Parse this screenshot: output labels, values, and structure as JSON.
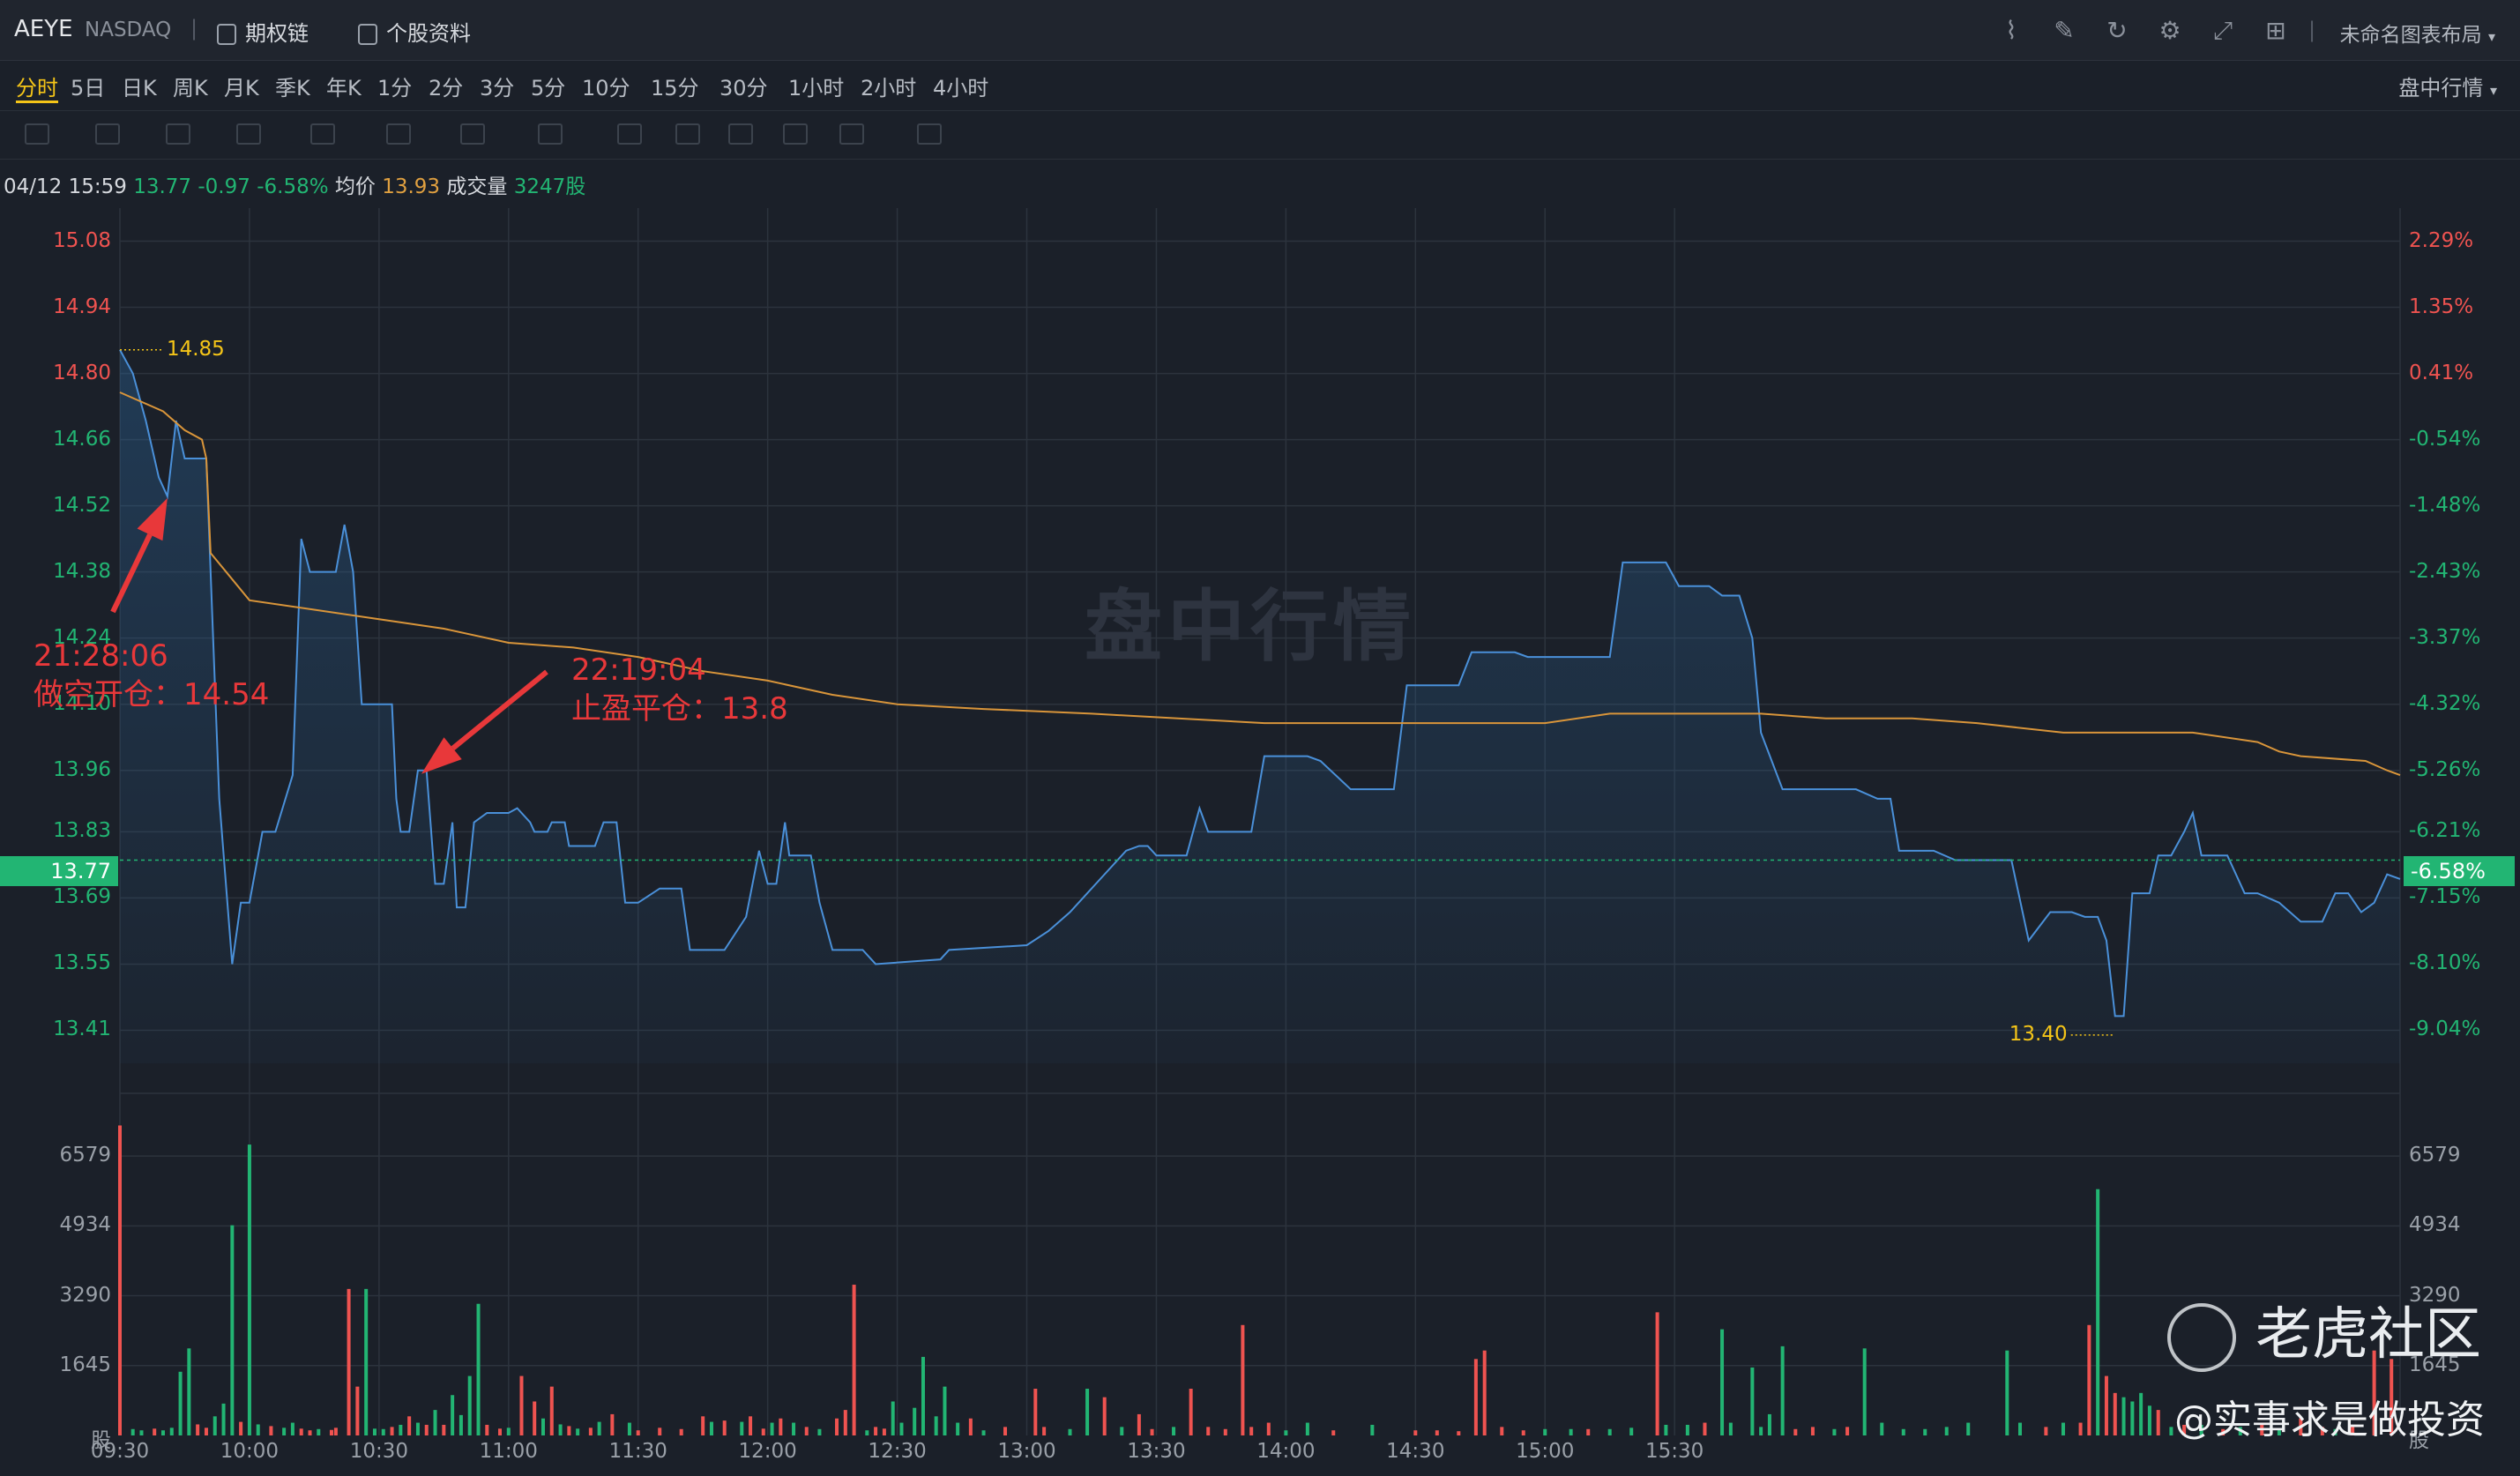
{
  "header": {
    "symbol": "AEYE",
    "exchange": "NASDAQ",
    "options_chain": "期权链",
    "profile": "个股资料",
    "layout_name": "未命名图表布局"
  },
  "timeframes": [
    "分时",
    "5日",
    "日K",
    "周K",
    "月K",
    "季K",
    "年K",
    "1分",
    "2分",
    "3分",
    "5分",
    "10分",
    "15分",
    "30分",
    "1小时",
    "2小时",
    "4小时"
  ],
  "session_mode": "盘中行情",
  "info_line": {
    "datetime": "04/12 15:59",
    "price": "13.77",
    "change": "-0.97",
    "change_pct": "-6.58%",
    "avg_label": "均价",
    "avg": "13.93",
    "volume_label": "成交量",
    "volume": "3247股"
  },
  "watermark": "盘中行情",
  "price_axis": {
    "labels": [
      "15.08",
      "14.94",
      "14.80",
      "14.66",
      "14.52",
      "14.38",
      "14.24",
      "14.10",
      "13.96",
      "13.83",
      "13.69",
      "13.55",
      "13.41"
    ],
    "pct_labels": [
      "2.29%",
      "1.35%",
      "0.41%",
      "-0.54%",
      "-1.48%",
      "-2.43%",
      "-3.37%",
      "-4.32%",
      "-5.26%",
      "-6.21%",
      "-7.15%",
      "-8.10%",
      "-9.04%"
    ],
    "current_price": "13.77",
    "current_pct": "-6.58%"
  },
  "volume_axis": {
    "labels": [
      "6579",
      "4934",
      "3290",
      "1645",
      "股"
    ]
  },
  "time_axis": [
    "09:30",
    "10:00",
    "10:30",
    "11:00",
    "11:30",
    "12:00",
    "12:30",
    "13:00",
    "13:30",
    "14:00",
    "14:30",
    "15:00",
    "15:30"
  ],
  "markers": {
    "high": "14.85",
    "low": "13.40"
  },
  "annotations": {
    "short_time": "21:28:06",
    "short_text": "做空开仓：14.54",
    "close_time": "22:19:04",
    "close_text": "止盈平仓：13.8"
  },
  "branding": {
    "logo": "老虎社区",
    "handle": "@实事求是做投资"
  },
  "colors": {
    "up": "#ef5350",
    "down": "#22b573",
    "line": "#4a90d9",
    "avg": "#d9953a",
    "accent": "#f5c518"
  },
  "chart_data": {
    "type": "line",
    "x_range": [
      "09:30",
      "16:00"
    ],
    "ylim": [
      13.34,
      15.15
    ],
    "price": [
      [
        0,
        14.85
      ],
      [
        3,
        14.8
      ],
      [
        6,
        14.7
      ],
      [
        9,
        14.58
      ],
      [
        11,
        14.54
      ],
      [
        13,
        14.7
      ],
      [
        15,
        14.62
      ],
      [
        20,
        14.62
      ],
      [
        23,
        13.9
      ],
      [
        26,
        13.55
      ],
      [
        28,
        13.68
      ],
      [
        30,
        13.68
      ],
      [
        33,
        13.83
      ],
      [
        36,
        13.83
      ],
      [
        40,
        13.95
      ],
      [
        42,
        14.45
      ],
      [
        44,
        14.38
      ],
      [
        50,
        14.38
      ],
      [
        52,
        14.48
      ],
      [
        54,
        14.38
      ],
      [
        56,
        14.1
      ],
      [
        63,
        14.1
      ],
      [
        64,
        13.9
      ],
      [
        65,
        13.83
      ],
      [
        67,
        13.83
      ],
      [
        69,
        13.96
      ],
      [
        71,
        13.96
      ],
      [
        73,
        13.72
      ],
      [
        75,
        13.72
      ],
      [
        77,
        13.85
      ],
      [
        78,
        13.67
      ],
      [
        80,
        13.67
      ],
      [
        82,
        13.85
      ],
      [
        85,
        13.87
      ],
      [
        90,
        13.87
      ],
      [
        92,
        13.88
      ],
      [
        95,
        13.85
      ],
      [
        96,
        13.83
      ],
      [
        99,
        13.83
      ],
      [
        100,
        13.85
      ],
      [
        103,
        13.85
      ],
      [
        104,
        13.8
      ],
      [
        110,
        13.8
      ],
      [
        112,
        13.85
      ],
      [
        115,
        13.85
      ],
      [
        117,
        13.68
      ],
      [
        120,
        13.68
      ],
      [
        125,
        13.71
      ],
      [
        130,
        13.71
      ],
      [
        132,
        13.58
      ],
      [
        140,
        13.58
      ],
      [
        145,
        13.65
      ],
      [
        148,
        13.79
      ],
      [
        150,
        13.72
      ],
      [
        152,
        13.72
      ],
      [
        154,
        13.85
      ],
      [
        155,
        13.78
      ],
      [
        160,
        13.78
      ],
      [
        162,
        13.68
      ],
      [
        165,
        13.58
      ],
      [
        172,
        13.58
      ],
      [
        175,
        13.55
      ],
      [
        190,
        13.56
      ],
      [
        192,
        13.58
      ],
      [
        210,
        13.59
      ],
      [
        215,
        13.62
      ],
      [
        220,
        13.66
      ],
      [
        228,
        13.74
      ],
      [
        233,
        13.79
      ],
      [
        236,
        13.8
      ],
      [
        238,
        13.8
      ],
      [
        240,
        13.78
      ],
      [
        247,
        13.78
      ],
      [
        250,
        13.88
      ],
      [
        252,
        13.83
      ],
      [
        262,
        13.83
      ],
      [
        265,
        13.99
      ],
      [
        275,
        13.99
      ],
      [
        278,
        13.98
      ],
      [
        285,
        13.92
      ],
      [
        295,
        13.92
      ],
      [
        298,
        14.14
      ],
      [
        310,
        14.14
      ],
      [
        313,
        14.21
      ],
      [
        323,
        14.21
      ],
      [
        326,
        14.2
      ],
      [
        335,
        14.2
      ],
      [
        345,
        14.2
      ],
      [
        348,
        14.4
      ],
      [
        358,
        14.4
      ],
      [
        361,
        14.35
      ],
      [
        368,
        14.35
      ],
      [
        371,
        14.33
      ],
      [
        375,
        14.33
      ],
      [
        378,
        14.24
      ],
      [
        380,
        14.04
      ],
      [
        385,
        13.92
      ],
      [
        402,
        13.92
      ],
      [
        407,
        13.9
      ],
      [
        410,
        13.9
      ],
      [
        412,
        13.79
      ],
      [
        420,
        13.79
      ],
      [
        425,
        13.77
      ],
      [
        438,
        13.77
      ],
      [
        442,
        13.6
      ],
      [
        447,
        13.66
      ],
      [
        452,
        13.66
      ],
      [
        455,
        13.65
      ],
      [
        458,
        13.65
      ],
      [
        460,
        13.6
      ],
      [
        462,
        13.44
      ],
      [
        464,
        13.44
      ],
      [
        466,
        13.7
      ],
      [
        470,
        13.7
      ],
      [
        472,
        13.78
      ],
      [
        475,
        13.78
      ],
      [
        478,
        13.83
      ],
      [
        480,
        13.87
      ],
      [
        482,
        13.78
      ],
      [
        488,
        13.78
      ],
      [
        492,
        13.7
      ],
      [
        495,
        13.7
      ],
      [
        500,
        13.68
      ],
      [
        505,
        13.64
      ],
      [
        510,
        13.64
      ],
      [
        513,
        13.7
      ],
      [
        516,
        13.7
      ],
      [
        519,
        13.66
      ],
      [
        522,
        13.68
      ],
      [
        525,
        13.74
      ],
      [
        528,
        13.73
      ]
    ],
    "avg": [
      [
        0,
        14.76
      ],
      [
        10,
        14.72
      ],
      [
        15,
        14.68
      ],
      [
        19,
        14.66
      ],
      [
        20,
        14.62
      ],
      [
        21,
        14.42
      ],
      [
        30,
        14.32
      ],
      [
        45,
        14.3
      ],
      [
        60,
        14.28
      ],
      [
        75,
        14.26
      ],
      [
        90,
        14.23
      ],
      [
        105,
        14.22
      ],
      [
        120,
        14.2
      ],
      [
        135,
        14.17
      ],
      [
        150,
        14.15
      ],
      [
        165,
        14.12
      ],
      [
        180,
        14.1
      ],
      [
        200,
        14.09
      ],
      [
        225,
        14.08
      ],
      [
        245,
        14.07
      ],
      [
        265,
        14.06
      ],
      [
        290,
        14.06
      ],
      [
        310,
        14.06
      ],
      [
        330,
        14.06
      ],
      [
        345,
        14.08
      ],
      [
        365,
        14.08
      ],
      [
        380,
        14.08
      ],
      [
        395,
        14.07
      ],
      [
        415,
        14.07
      ],
      [
        430,
        14.06
      ],
      [
        450,
        14.04
      ],
      [
        460,
        14.04
      ],
      [
        480,
        14.04
      ],
      [
        495,
        14.02
      ],
      [
        500,
        14.0
      ],
      [
        505,
        13.99
      ],
      [
        520,
        13.98
      ],
      [
        525,
        13.96
      ],
      [
        528,
        13.95
      ]
    ],
    "volume": [
      [
        0,
        7300,
        "up"
      ],
      [
        3,
        150,
        "down"
      ],
      [
        5,
        120,
        "down"
      ],
      [
        8,
        160,
        "up"
      ],
      [
        10,
        120,
        "down"
      ],
      [
        12,
        180,
        "down"
      ],
      [
        14,
        1500,
        "down"
      ],
      [
        16,
        2050,
        "down"
      ],
      [
        18,
        260,
        "up"
      ],
      [
        20,
        180,
        "up"
      ],
      [
        22,
        450,
        "down"
      ],
      [
        24,
        750,
        "down"
      ],
      [
        26,
        4950,
        "down"
      ],
      [
        28,
        320,
        "up"
      ],
      [
        30,
        6850,
        "down"
      ],
      [
        32,
        260,
        "down"
      ],
      [
        35,
        220,
        "up"
      ],
      [
        38,
        180,
        "down"
      ],
      [
        40,
        300,
        "down"
      ],
      [
        42,
        160,
        "up"
      ],
      [
        44,
        120,
        "up"
      ],
      [
        46,
        150,
        "down"
      ],
      [
        49,
        130,
        "up"
      ],
      [
        50,
        180,
        "up"
      ],
      [
        53,
        3450,
        "up"
      ],
      [
        55,
        1150,
        "up"
      ],
      [
        57,
        3450,
        "down"
      ],
      [
        59,
        160,
        "down"
      ],
      [
        61,
        150,
        "down"
      ],
      [
        63,
        200,
        "up"
      ],
      [
        65,
        250,
        "down"
      ],
      [
        67,
        450,
        "up"
      ],
      [
        69,
        300,
        "down"
      ],
      [
        71,
        250,
        "up"
      ],
      [
        73,
        600,
        "down"
      ],
      [
        75,
        250,
        "up"
      ],
      [
        77,
        950,
        "down"
      ],
      [
        79,
        480,
        "down"
      ],
      [
        81,
        1400,
        "down"
      ],
      [
        83,
        3100,
        "down"
      ],
      [
        85,
        250,
        "up"
      ],
      [
        88,
        160,
        "up"
      ],
      [
        90,
        180,
        "down"
      ],
      [
        93,
        1400,
        "up"
      ],
      [
        96,
        800,
        "up"
      ],
      [
        98,
        400,
        "down"
      ],
      [
        100,
        1150,
        "up"
      ],
      [
        102,
        260,
        "down"
      ],
      [
        104,
        220,
        "up"
      ],
      [
        106,
        160,
        "down"
      ],
      [
        109,
        180,
        "up"
      ],
      [
        111,
        320,
        "down"
      ],
      [
        114,
        500,
        "up"
      ],
      [
        118,
        300,
        "down"
      ],
      [
        120,
        120,
        "up"
      ],
      [
        125,
        180,
        "up"
      ],
      [
        130,
        150,
        "up"
      ],
      [
        135,
        450,
        "up"
      ],
      [
        137,
        320,
        "down"
      ],
      [
        140,
        350,
        "up"
      ],
      [
        144,
        320,
        "down"
      ],
      [
        146,
        450,
        "up"
      ],
      [
        149,
        160,
        "up"
      ],
      [
        151,
        300,
        "down"
      ],
      [
        153,
        400,
        "up"
      ],
      [
        156,
        300,
        "down"
      ],
      [
        159,
        200,
        "up"
      ],
      [
        162,
        150,
        "down"
      ],
      [
        166,
        400,
        "up"
      ],
      [
        168,
        600,
        "up"
      ],
      [
        170,
        3550,
        "up"
      ],
      [
        173,
        120,
        "down"
      ],
      [
        175,
        200,
        "up"
      ],
      [
        177,
        160,
        "up"
      ],
      [
        179,
        800,
        "down"
      ],
      [
        181,
        300,
        "down"
      ],
      [
        184,
        650,
        "down"
      ],
      [
        186,
        1850,
        "down"
      ],
      [
        189,
        450,
        "down"
      ],
      [
        191,
        1150,
        "down"
      ],
      [
        194,
        300,
        "down"
      ],
      [
        197,
        400,
        "up"
      ],
      [
        200,
        120,
        "down"
      ],
      [
        205,
        200,
        "up"
      ],
      [
        212,
        1100,
        "up"
      ],
      [
        214,
        200,
        "up"
      ],
      [
        220,
        150,
        "down"
      ],
      [
        224,
        1100,
        "down"
      ],
      [
        228,
        900,
        "up"
      ],
      [
        232,
        200,
        "down"
      ],
      [
        236,
        500,
        "up"
      ],
      [
        239,
        150,
        "up"
      ],
      [
        244,
        200,
        "down"
      ],
      [
        248,
        1100,
        "up"
      ],
      [
        252,
        200,
        "up"
      ],
      [
        256,
        150,
        "up"
      ],
      [
        260,
        2600,
        "up"
      ],
      [
        262,
        200,
        "up"
      ],
      [
        266,
        300,
        "up"
      ],
      [
        270,
        120,
        "down"
      ],
      [
        275,
        300,
        "down"
      ],
      [
        281,
        120,
        "up"
      ],
      [
        290,
        250,
        "down"
      ],
      [
        300,
        120,
        "up"
      ],
      [
        305,
        120,
        "up"
      ],
      [
        310,
        100,
        "up"
      ],
      [
        314,
        1800,
        "up"
      ],
      [
        316,
        2000,
        "up"
      ],
      [
        320,
        200,
        "up"
      ],
      [
        325,
        120,
        "up"
      ],
      [
        330,
        150,
        "down"
      ],
      [
        336,
        150,
        "down"
      ],
      [
        340,
        150,
        "up"
      ],
      [
        345,
        150,
        "down"
      ],
      [
        350,
        180,
        "down"
      ],
      [
        356,
        2900,
        "up"
      ],
      [
        358,
        250,
        "down"
      ],
      [
        363,
        250,
        "down"
      ],
      [
        367,
        300,
        "up"
      ],
      [
        371,
        2500,
        "down"
      ],
      [
        373,
        300,
        "down"
      ],
      [
        378,
        1600,
        "down"
      ],
      [
        380,
        200,
        "down"
      ],
      [
        382,
        500,
        "down"
      ],
      [
        385,
        2100,
        "down"
      ],
      [
        388,
        150,
        "up"
      ],
      [
        392,
        200,
        "up"
      ],
      [
        397,
        150,
        "down"
      ],
      [
        400,
        200,
        "up"
      ],
      [
        404,
        2050,
        "down"
      ],
      [
        408,
        300,
        "down"
      ],
      [
        413,
        150,
        "down"
      ],
      [
        418,
        150,
        "down"
      ],
      [
        423,
        200,
        "down"
      ],
      [
        428,
        300,
        "down"
      ],
      [
        437,
        2000,
        "down"
      ],
      [
        440,
        300,
        "down"
      ],
      [
        446,
        200,
        "up"
      ],
      [
        450,
        300,
        "down"
      ],
      [
        454,
        300,
        "up"
      ],
      [
        456,
        2600,
        "up"
      ],
      [
        458,
        5800,
        "down"
      ],
      [
        460,
        1400,
        "up"
      ],
      [
        462,
        1000,
        "up"
      ],
      [
        464,
        900,
        "down"
      ],
      [
        466,
        800,
        "down"
      ],
      [
        468,
        1000,
        "down"
      ],
      [
        470,
        700,
        "down"
      ],
      [
        472,
        600,
        "up"
      ],
      [
        475,
        200,
        "down"
      ],
      [
        478,
        250,
        "up"
      ],
      [
        482,
        250,
        "down"
      ],
      [
        487,
        150,
        "up"
      ],
      [
        491,
        200,
        "down"
      ],
      [
        496,
        250,
        "up"
      ],
      [
        500,
        150,
        "down"
      ],
      [
        505,
        400,
        "up"
      ],
      [
        510,
        200,
        "up"
      ],
      [
        513,
        150,
        "down"
      ],
      [
        517,
        200,
        "up"
      ],
      [
        522,
        2000,
        "up"
      ],
      [
        526,
        1800,
        "up"
      ]
    ],
    "vol_max": 7600
  }
}
